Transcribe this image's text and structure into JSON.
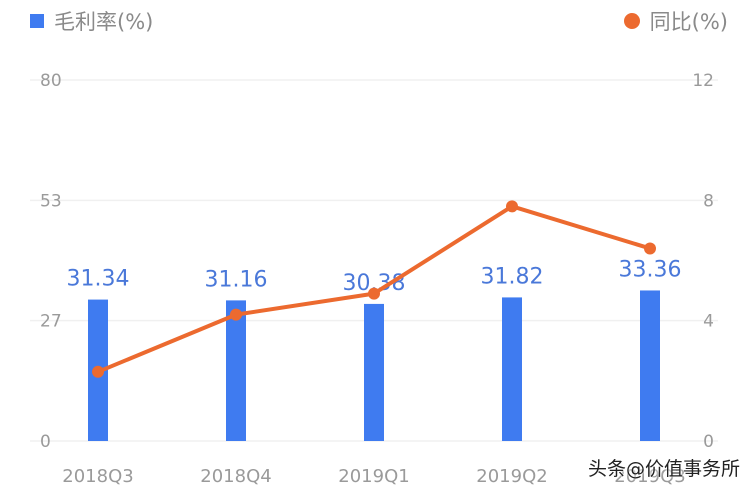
{
  "legend": {
    "left": {
      "label": "毛利率(%)",
      "color": "#3f7bf0",
      "marker": "square"
    },
    "right": {
      "label": "同比(%)",
      "color": "#ec6a2f",
      "marker": "circle"
    }
  },
  "watermark": "头条@价值事务所",
  "chart_data": {
    "type": "bar",
    "title": "",
    "categories": [
      "2018Q3",
      "2018Q4",
      "2019Q1",
      "2019Q2",
      "2019Q3"
    ],
    "series": [
      {
        "name": "毛利率(%)",
        "type": "bar",
        "axis": "left",
        "color": "#3f7bf0",
        "values": [
          31.34,
          31.16,
          30.38,
          31.82,
          33.36
        ],
        "data_labels": [
          "31.34",
          "31.16",
          "30.38",
          "31.82",
          "33.36"
        ]
      },
      {
        "name": "同比(%)",
        "type": "line",
        "axis": "right",
        "color": "#ec6a2f",
        "values": [
          2.3,
          4.2,
          4.9,
          7.8,
          6.4
        ]
      }
    ],
    "left_axis": {
      "ticks": [
        "80",
        "53",
        "27",
        "0"
      ],
      "ylim": [
        0,
        80
      ]
    },
    "right_axis": {
      "ticks": [
        "12",
        "8",
        "4",
        "0"
      ],
      "ylim": [
        0,
        12
      ]
    },
    "xlabel": "",
    "ylabel": "",
    "grid": true,
    "legend_position": "top"
  }
}
